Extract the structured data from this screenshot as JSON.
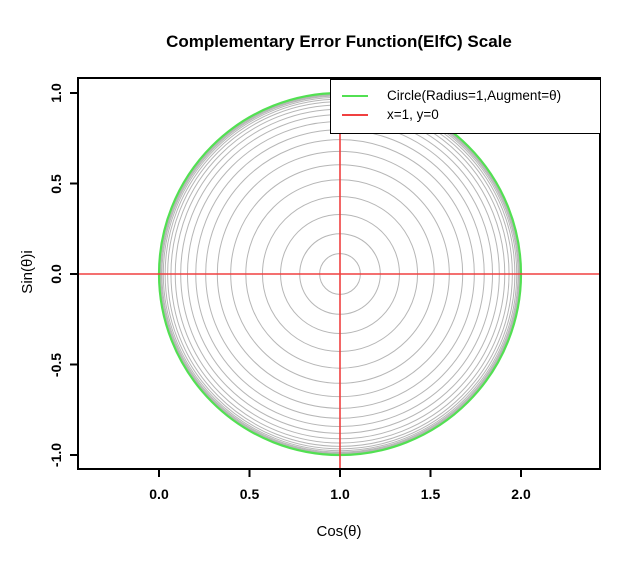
{
  "chart_data": {
    "type": "line",
    "title": "Complementary Error Function(ElfC) Scale",
    "xlabel": "Cos(θ)",
    "ylabel": "Sin(θ)i",
    "x_ticks": [
      0,
      0.5,
      1,
      1.5,
      2
    ],
    "x_tick_labels": [
      "0.0",
      "0.5",
      "1.0",
      "1.5",
      "2.0"
    ],
    "y_ticks": [
      -1,
      -0.5,
      0,
      0.5,
      1
    ],
    "y_tick_labels": [
      "-1.0",
      "-0.5",
      "0.0",
      "0.5",
      "1.0"
    ],
    "xlim": [
      -0.45,
      2.44
    ],
    "ylim": [
      -1.08,
      1.09
    ],
    "grid": false,
    "legend_position": "topright",
    "center": [
      1,
      0
    ],
    "radii_rule": "concentric circles centered at (1,0), radii = erf(k/10) = 1 - erfc(k/10), k = 1..24, outer circle radius 1",
    "circle_radii": [
      0.1125,
      0.2227,
      0.3286,
      0.4284,
      0.5205,
      0.6039,
      0.6778,
      0.7421,
      0.7969,
      0.8427,
      0.8802,
      0.9103,
      0.934,
      0.9523,
      0.9661,
      0.9763,
      0.9838,
      0.9891,
      0.9928,
      0.9953,
      0.997,
      0.9981,
      0.9989,
      0.9993
    ],
    "circle_color": "#b6b6b6",
    "outer_circle": {
      "radius": 1,
      "color": "#52e052"
    },
    "crosshair": {
      "x": 1,
      "y": 0,
      "color": "#f04040"
    },
    "axis_color": "#000000",
    "legend": {
      "entries": [
        {
          "label": "Circle(Radius=1,Augment=θ)",
          "color": "#52e052"
        },
        {
          "label": "x=1, y=0",
          "color": "#f04040"
        }
      ]
    }
  }
}
